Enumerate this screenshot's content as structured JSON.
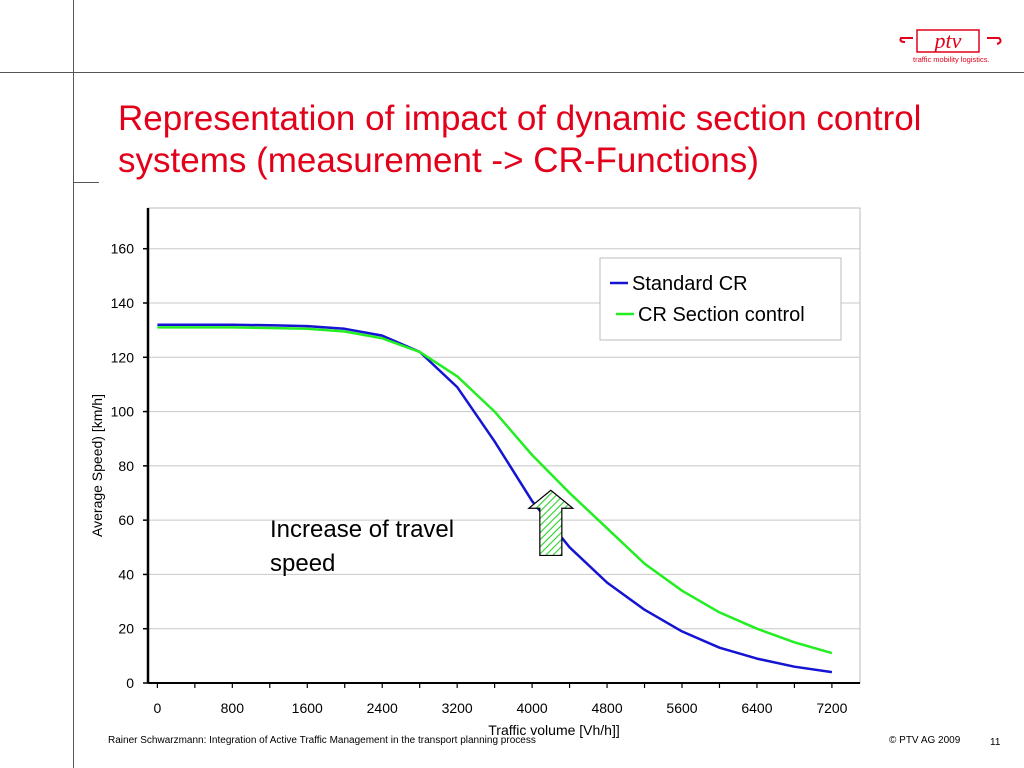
{
  "slide": {
    "title_line1": "Representation of impact of dynamic section control",
    "title_line2": "systems (measurement -> CR-Functions)",
    "logo_text": "ptv",
    "logo_tagline": "traffic mobility logistics.",
    "footer_left": "Rainer Schwarzmann: Integration of Active Traffic Management in the transport planning process",
    "footer_right": "© PTV AG 2009",
    "page_number": "11",
    "brand_color": "#e2001a"
  },
  "chart_data": {
    "type": "line",
    "title": "",
    "xlabel": "Traffic volume [Vh/h]]",
    "ylabel": "Average Speed)  [km/h]",
    "xlim": [
      -100,
      7500
    ],
    "ylim": [
      0,
      175
    ],
    "x_ticks": [
      0,
      800,
      1600,
      2400,
      3200,
      4000,
      4800,
      5600,
      6400,
      7200
    ],
    "y_ticks": [
      0,
      20,
      40,
      60,
      80,
      100,
      120,
      140,
      160
    ],
    "grid": true,
    "legend_position": "top-right",
    "x": [
      0,
      400,
      800,
      1200,
      1600,
      2000,
      2400,
      2800,
      3200,
      3600,
      4000,
      4400,
      4800,
      5200,
      5600,
      6000,
      6400,
      6800,
      7200
    ],
    "series": [
      {
        "name": "Standard CR",
        "color": "#1414d2",
        "values": [
          132,
          132,
          132,
          131.8,
          131.5,
          130.5,
          128,
          122,
          109,
          89,
          67,
          50,
          37,
          27,
          19,
          13,
          9,
          6,
          4
        ]
      },
      {
        "name": "CR Section control",
        "color": "#22ee22",
        "values": [
          131,
          131,
          131,
          130.8,
          130.5,
          129.5,
          127,
          122,
          113,
          100,
          84,
          70,
          57,
          44,
          34,
          26,
          20,
          15,
          11
        ]
      }
    ],
    "annotation": {
      "text_line1": "Increase of travel",
      "text_line2": "speed",
      "arrow_x": 4200,
      "arrow_from": 47,
      "arrow_to": 71
    }
  }
}
